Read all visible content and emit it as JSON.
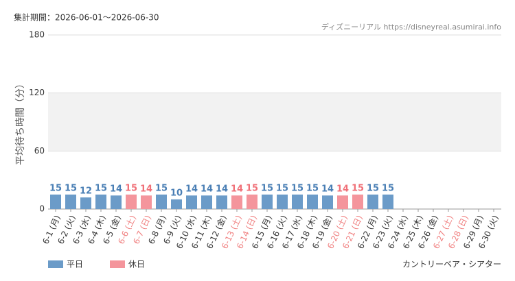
{
  "chart_data": {
    "type": "bar",
    "period": "集計期間：2026-06-01～2026-06-30",
    "source": "ディズニーリアル https://disneyreal.asumirai.info",
    "y_label": "平均待ち時間（分）",
    "footer": "カントリーベア・シアター",
    "categories": [
      "6-1 (月)",
      "6-2 (火)",
      "6-3 (水)",
      "6-4 (木)",
      "6-5 (金)",
      "6-6 (土)",
      "6-7 (日)",
      "6-8 (月)",
      "6-9 (火)",
      "6-10 (水)",
      "6-11 (木)",
      "6-12 (金)",
      "6-13 (土)",
      "6-14 (日)",
      "6-15 (月)",
      "6-16 (火)",
      "6-17 (水)",
      "6-18 (木)",
      "6-19 (金)",
      "6-20 (土)",
      "6-21 (日)",
      "6-22 (月)",
      "6-23 (火)",
      "6-24 (水)",
      "6-25 (木)",
      "6-26 (金)",
      "6-27 (土)",
      "6-28 (日)",
      "6-29 (月)",
      "6-30 (火)"
    ],
    "category_label_colors": [
      "#333",
      "#333",
      "#333",
      "#333",
      "#333",
      "#f08080",
      "#f08080",
      "#333",
      "#333",
      "#333",
      "#333",
      "#333",
      "#f08080",
      "#f08080",
      "#333",
      "#333",
      "#333",
      "#333",
      "#333",
      "#f08080",
      "#f08080",
      "#333",
      "#333",
      "#333",
      "#333",
      "#333",
      "#f08080",
      "#f08080",
      "#333",
      "#333"
    ],
    "series": [
      {
        "name": "平日",
        "color": "#6b9bc8",
        "label_color": "#4a7fb5",
        "values": [
          15,
          15,
          12,
          15,
          14,
          null,
          null,
          15,
          10,
          14,
          14,
          14,
          null,
          null,
          15,
          15,
          15,
          15,
          14,
          null,
          null,
          15,
          15,
          null,
          null,
          null,
          null,
          null,
          null,
          null
        ]
      },
      {
        "name": "休日",
        "color": "#f4959c",
        "label_color": "#f07078",
        "values": [
          null,
          null,
          null,
          null,
          null,
          15,
          14,
          null,
          null,
          null,
          null,
          null,
          14,
          15,
          null,
          null,
          null,
          null,
          null,
          14,
          15,
          null,
          null,
          null,
          null,
          null,
          null,
          null,
          null,
          null
        ]
      }
    ],
    "ylim": [
      0,
      180
    ],
    "yticks": [
      0,
      60,
      120,
      180
    ],
    "grid": true
  }
}
